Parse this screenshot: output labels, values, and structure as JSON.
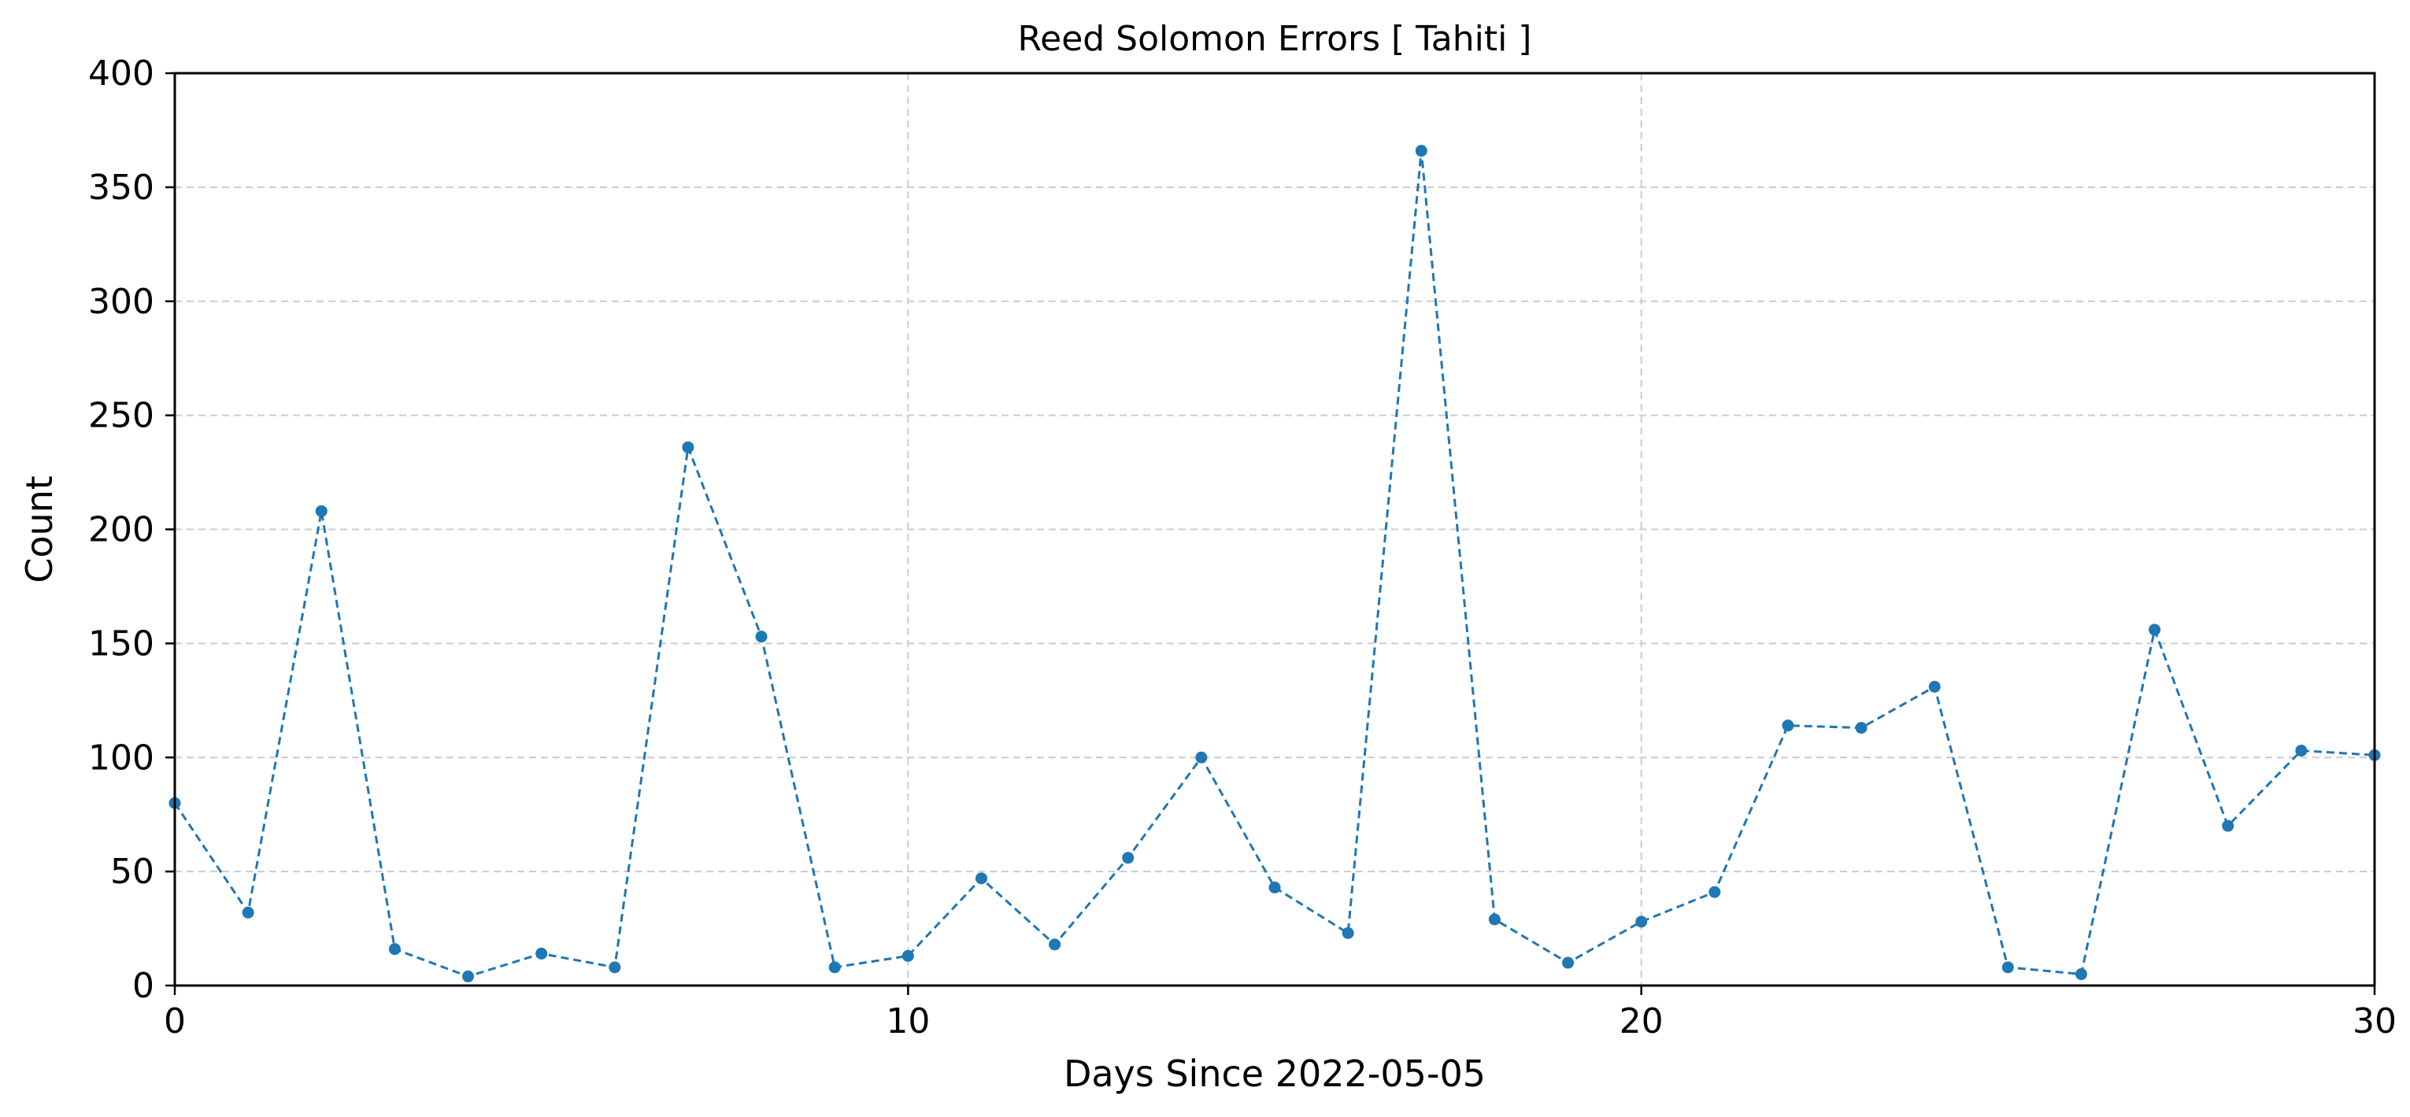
{
  "chart_data": {
    "type": "line",
    "title": "Reed Solomon Errors [ Tahiti ]",
    "xlabel": "Days Since 2022-05-05",
    "ylabel": "Count",
    "xlim": [
      0,
      30
    ],
    "ylim": [
      0,
      400
    ],
    "xticks": [
      0,
      10,
      20,
      30
    ],
    "yticks": [
      0,
      50,
      100,
      150,
      200,
      250,
      300,
      350,
      400
    ],
    "grid": true,
    "line_style": "dashed",
    "marker": "circle",
    "series": [
      {
        "color": "#1f77b4",
        "x": [
          0,
          1,
          2,
          3,
          4,
          5,
          6,
          7,
          8,
          9,
          10,
          11,
          12,
          13,
          14,
          15,
          16,
          17,
          18,
          19,
          20,
          21,
          22,
          23,
          24,
          25,
          26,
          27,
          28,
          29,
          30
        ],
        "y": [
          80,
          32,
          208,
          16,
          4,
          14,
          8,
          236,
          153,
          8,
          13,
          47,
          18,
          56,
          100,
          43,
          23,
          366,
          29,
          10,
          28,
          41,
          114,
          113,
          131,
          8,
          5,
          156,
          70,
          103,
          101
        ]
      }
    ]
  }
}
